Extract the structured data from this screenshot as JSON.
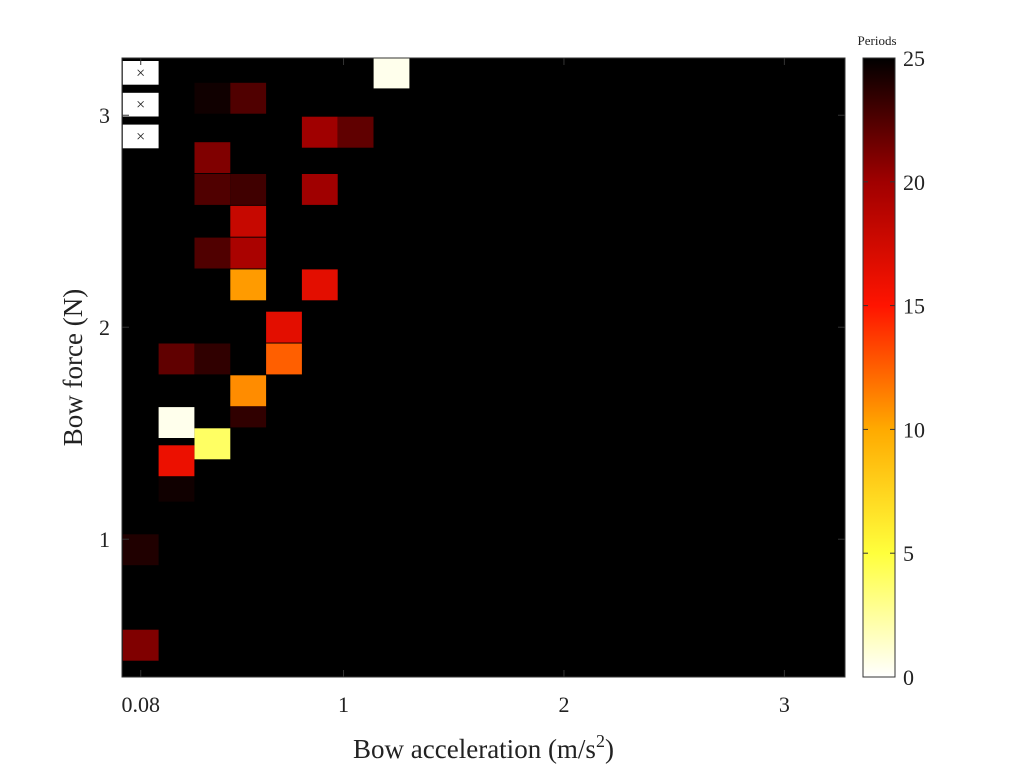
{
  "chart_data": {
    "type": "heatmap",
    "xlabel": "Bow acceleration (m/s",
    "xlabel_sup": "2",
    "xlabel_end": ")",
    "ylabel": "Bow force (N)",
    "x_ticks": [
      {
        "value": 0.08,
        "label": "0.08"
      },
      {
        "value": 1,
        "label": "1"
      },
      {
        "value": 2,
        "label": "2"
      },
      {
        "value": 3,
        "label": "3"
      }
    ],
    "y_ticks": [
      {
        "value": 1,
        "label": "1"
      },
      {
        "value": 2,
        "label": "2"
      },
      {
        "value": 3,
        "label": "3"
      }
    ],
    "xlim": [
      -0.005,
      3.275
    ],
    "ylim": [
      0.35,
      3.27
    ],
    "x_step": 0.1625,
    "y_step": 0.146,
    "background_value": 25,
    "colorbar": {
      "title": "Periods",
      "min": 0,
      "max": 25,
      "ticks": [
        {
          "value": 0,
          "label": "0"
        },
        {
          "value": 5,
          "label": "5"
        },
        {
          "value": 10,
          "label": "10"
        },
        {
          "value": 15,
          "label": "15"
        },
        {
          "value": 20,
          "label": "20"
        },
        {
          "value": 25,
          "label": "25"
        }
      ],
      "colormap": "hot-reversed"
    },
    "cells": [
      {
        "x": 0.08,
        "y": 0.5,
        "value": 21
      },
      {
        "x": 0.08,
        "y": 0.95,
        "value": 24
      },
      {
        "x": 0.2425,
        "y": 1.25,
        "value": 24.5
      },
      {
        "x": 0.2425,
        "y": 1.37,
        "value": 16
      },
      {
        "x": 0.2425,
        "y": 1.55,
        "value": 0.5
      },
      {
        "x": 0.2425,
        "y": 1.85,
        "value": 22
      },
      {
        "x": 0.405,
        "y": 1.45,
        "value": 4
      },
      {
        "x": 0.405,
        "y": 1.85,
        "value": 23.5
      },
      {
        "x": 0.405,
        "y": 2.35,
        "value": 22.5
      },
      {
        "x": 0.405,
        "y": 2.65,
        "value": 22.5
      },
      {
        "x": 0.405,
        "y": 2.8,
        "value": 21
      },
      {
        "x": 0.405,
        "y": 3.08,
        "value": 24.5
      },
      {
        "x": 0.5675,
        "y": 1.6,
        "value": 23.5
      },
      {
        "x": 0.5675,
        "y": 1.7,
        "value": 11
      },
      {
        "x": 0.5675,
        "y": 2.2,
        "value": 10.5
      },
      {
        "x": 0.5675,
        "y": 2.35,
        "value": 19.5
      },
      {
        "x": 0.5675,
        "y": 2.5,
        "value": 18
      },
      {
        "x": 0.5675,
        "y": 2.65,
        "value": 23
      },
      {
        "x": 0.5675,
        "y": 3.08,
        "value": 22.5
      },
      {
        "x": 0.73,
        "y": 1.85,
        "value": 12.5
      },
      {
        "x": 0.73,
        "y": 2.0,
        "value": 16.5
      },
      {
        "x": 0.8925,
        "y": 2.2,
        "value": 16.5
      },
      {
        "x": 0.8925,
        "y": 2.65,
        "value": 20
      },
      {
        "x": 0.8925,
        "y": 2.92,
        "value": 20
      },
      {
        "x": 1.055,
        "y": 2.92,
        "value": 22
      },
      {
        "x": 1.2175,
        "y": 3.2,
        "value": 0.5
      }
    ],
    "missing_cells": [
      {
        "x": 0.08,
        "y": 3.2
      },
      {
        "x": 0.08,
        "y": 3.05
      },
      {
        "x": 0.08,
        "y": 2.9
      }
    ],
    "missing_marker": "×"
  }
}
